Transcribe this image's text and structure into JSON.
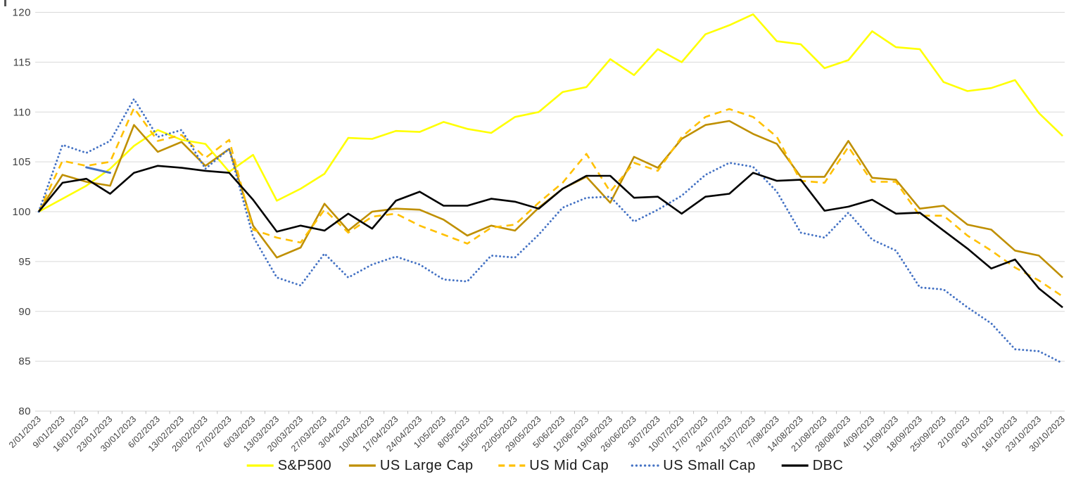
{
  "chart_data": {
    "type": "line",
    "title": "",
    "xlabel": "",
    "ylabel": "",
    "ylim": [
      80,
      120
    ],
    "grid": true,
    "legend_position": "bottom",
    "y_ticks": [
      "80",
      "85",
      "90",
      "95",
      "100",
      "105",
      "110",
      "115",
      "120"
    ],
    "y_tick_values": [
      80,
      85,
      90,
      95,
      100,
      105,
      110,
      115,
      120
    ],
    "x": [
      "2/01/2023",
      "9/01/2023",
      "16/01/2023",
      "23/01/2023",
      "30/01/2023",
      "6/02/2023",
      "13/02/2023",
      "20/02/2023",
      "27/02/2023",
      "6/03/2023",
      "13/03/2023",
      "20/03/2023",
      "27/03/2023",
      "3/04/2023",
      "10/04/2023",
      "17/04/2023",
      "24/04/2023",
      "1/05/2023",
      "8/05/2023",
      "15/05/2023",
      "22/05/2023",
      "29/05/2023",
      "5/06/2023",
      "12/06/2023",
      "19/06/2023",
      "26/06/2023",
      "3/07/2023",
      "10/07/2023",
      "17/07/2023",
      "24/07/2023",
      "31/07/2023",
      "7/08/2023",
      "14/08/2023",
      "21/08/2023",
      "28/08/2023",
      "4/09/2023",
      "11/09/2023",
      "18/09/2023",
      "25/09/2023",
      "2/10/2023",
      "9/10/2023",
      "16/10/2023",
      "23/10/2023",
      "30/10/2023"
    ],
    "series": [
      {
        "name": "S&P500",
        "color": "#FFFF00",
        "style": "solid",
        "values": [
          100,
          101.3,
          102.6,
          104.3,
          106.6,
          108.2,
          107.2,
          106.8,
          104.0,
          105.7,
          101.1,
          102.3,
          103.8,
          107.4,
          107.3,
          108.1,
          108.0,
          109.0,
          108.3,
          107.9,
          109.5,
          110.0,
          112.0,
          112.5,
          115.3,
          113.7,
          116.3,
          115.0,
          117.8,
          118.7,
          119.8,
          117.1,
          116.8,
          114.4,
          115.2,
          118.1,
          116.5,
          116.3,
          113.0,
          112.1,
          112.4,
          113.2,
          109.9,
          107.6
        ]
      },
      {
        "name": "US Large Cap",
        "color": "#BF8F00",
        "style": "solid",
        "values": [
          100,
          103.7,
          103.0,
          102.6,
          108.7,
          106.0,
          107.0,
          104.6,
          106.3,
          98.6,
          95.4,
          96.4,
          100.8,
          98.1,
          100.0,
          100.3,
          100.2,
          99.2,
          97.6,
          98.6,
          98.1,
          100.4,
          102.3,
          103.5,
          100.9,
          105.5,
          104.4,
          107.3,
          108.7,
          109.1,
          107.8,
          106.8,
          103.5,
          103.5,
          107.1,
          103.4,
          103.2,
          100.3,
          100.6,
          98.7,
          98.2,
          96.1,
          95.6,
          93.4
        ]
      },
      {
        "name": "US Mid Cap",
        "color": "#FFC000",
        "style": "dashed",
        "values": [
          100,
          105.1,
          104.6,
          105.0,
          110.4,
          107.1,
          107.7,
          105.4,
          107.2,
          98.2,
          97.4,
          96.9,
          100.2,
          97.9,
          99.5,
          99.8,
          98.6,
          97.7,
          96.8,
          98.4,
          98.7,
          100.9,
          102.9,
          105.8,
          102.0,
          104.9,
          104.1,
          107.5,
          109.5,
          110.3,
          109.5,
          107.5,
          103.1,
          102.9,
          106.5,
          103.0,
          103.0,
          99.6,
          99.6,
          97.6,
          96.1,
          94.4,
          93.1,
          91.5
        ]
      },
      {
        "name": "US Small Cap",
        "color": "#4472C4",
        "style": "dotted",
        "values": [
          100,
          106.7,
          105.9,
          107.1,
          111.3,
          107.5,
          108.2,
          104.3,
          106.3,
          97.5,
          93.4,
          92.6,
          95.8,
          93.4,
          94.7,
          95.5,
          94.7,
          93.2,
          93.0,
          95.6,
          95.4,
          97.7,
          100.4,
          101.4,
          101.5,
          99.0,
          100.2,
          101.6,
          103.7,
          104.9,
          104.5,
          102.0,
          97.9,
          97.4,
          99.9,
          97.2,
          96.1,
          92.4,
          92.2,
          90.4,
          88.8,
          86.2,
          86.0,
          84.8
        ]
      },
      {
        "name": "DBC",
        "color": "#000000",
        "style": "solid",
        "values": [
          100,
          102.9,
          103.3,
          101.8,
          103.9,
          104.6,
          104.4,
          104.1,
          103.9,
          101.2,
          98.0,
          98.6,
          98.1,
          99.8,
          98.3,
          101.1,
          102.0,
          100.6,
          100.6,
          101.3,
          101.0,
          100.3,
          102.3,
          103.6,
          103.6,
          101.4,
          101.5,
          99.8,
          101.5,
          101.8,
          103.9,
          103.1,
          103.2,
          100.1,
          100.5,
          101.2,
          99.8,
          99.9,
          98.1,
          96.3,
          94.3,
          95.2,
          92.3,
          90.4
        ]
      }
    ],
    "stray_segment": {
      "color": "#4472C4",
      "style": "solid",
      "from_index": 2,
      "from_value": 104.45,
      "to_index": 3,
      "to_value": 103.9
    }
  }
}
